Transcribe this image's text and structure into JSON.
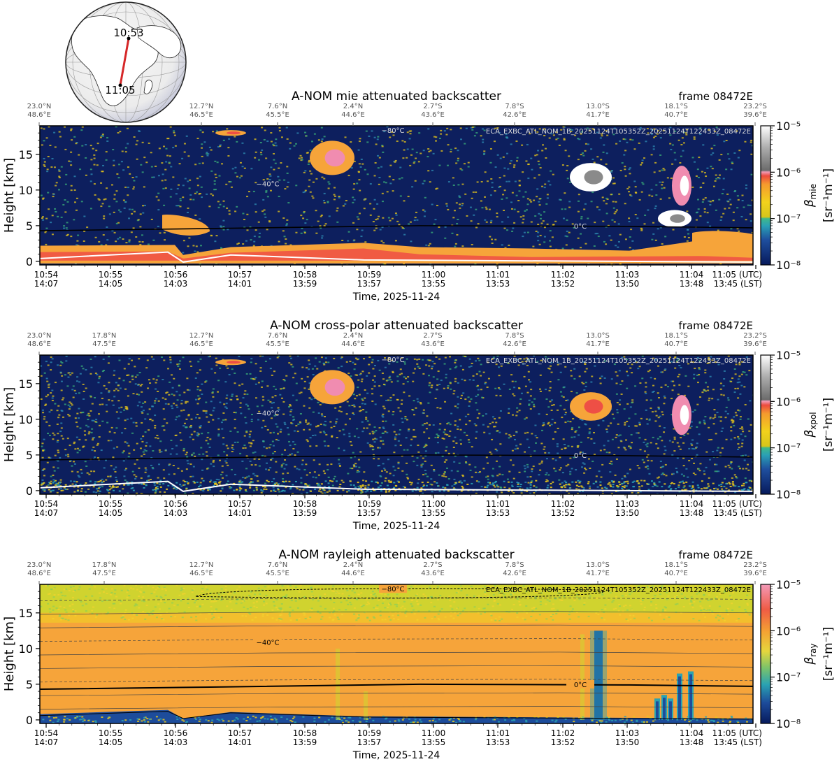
{
  "globe": {
    "start_label": "10:53",
    "end_label": "11:05",
    "track_color": "#d62728"
  },
  "common": {
    "frame_label": "frame 08472E",
    "time_axis_label": "Time, 2025-11-24",
    "height_label": "Height [km]",
    "utc_suffix": "(UTC)",
    "lst_suffix": "(LST)",
    "temp_labels": [
      "−80°C",
      "−40°C",
      "0°C"
    ],
    "product_label": "ECA_EXBC_ATL_NOM_1B_20251124T105352Z_20251124T122433Z_08472E",
    "colors": {
      "navy": "#0d1f5e",
      "sky_yellow": "#e9c81a",
      "orange": "#f6a43a",
      "red": "#ee4f45",
      "pink": "#f08cb0",
      "gray": "#8a8a8a",
      "white": "#ffffff"
    }
  },
  "chart_data": [
    {
      "type": "heatmap",
      "title": "A-NOM mie attenuated backscatter",
      "colorbar_label": "βmie [sr⁻¹m⁻¹]",
      "colorbar_symbol": "β",
      "colorbar_sub": "mie",
      "colorbar_unit": "[sr⁻¹m⁻¹]",
      "colorbar_ticks": [
        "10⁻⁵",
        "10⁻⁶",
        "10⁻⁷",
        "10⁻⁸"
      ],
      "colorbar_range": [
        1e-08,
        1e-05
      ],
      "colorbar_scale": "log",
      "ylabel": "Height [km]",
      "ylim": [
        -0.5,
        19
      ],
      "yticks": [
        0,
        5,
        10,
        15
      ],
      "xlabel": "Time, 2025-11-24",
      "x_utc": [
        "10:54",
        "10:55",
        "10:56",
        "10:57",
        "10:58",
        "10:59",
        "11:00",
        "11:01",
        "11:02",
        "11:03",
        "11:04",
        "11:05"
      ],
      "x_lst": [
        "14:07",
        "14:05",
        "14:03",
        "14:01",
        "13:59",
        "13:57",
        "13:55",
        "13:53",
        "13:52",
        "13:50",
        "13:48",
        "13:45"
      ],
      "top_lat": [
        "23.0°N",
        "",
        "12.7°N",
        "7.6°N",
        "2.4°N",
        "2.7°S",
        "7.8°S",
        "13.0°S",
        "18.1°S",
        "23.2°S"
      ],
      "top_lon": [
        "48.6°E",
        "",
        "46.5°E",
        "45.5°E",
        "44.6°E",
        "43.6°E",
        "42.6°E",
        "41.7°E",
        "40.7°E",
        "39.6°E"
      ],
      "isotherm_labels": [
        "−80°C",
        "−40°C",
        "0°C"
      ]
    },
    {
      "type": "heatmap",
      "title": "A-NOM cross-polar attenuated backscatter",
      "colorbar_label": "βxpol [sr⁻¹m⁻¹]",
      "colorbar_symbol": "β",
      "colorbar_sub": "xpol",
      "colorbar_unit": "[sr⁻¹m⁻¹]",
      "colorbar_ticks": [
        "10⁻⁵",
        "10⁻⁶",
        "10⁻⁷",
        "10⁻⁸"
      ],
      "colorbar_range": [
        1e-08,
        1e-05
      ],
      "colorbar_scale": "log",
      "ylabel": "Height [km]",
      "ylim": [
        -0.5,
        19
      ],
      "yticks": [
        0,
        5,
        10,
        15
      ],
      "xlabel": "Time, 2025-11-24",
      "x_utc": [
        "10:54",
        "10:55",
        "10:56",
        "10:57",
        "10:58",
        "10:59",
        "11:00",
        "11:01",
        "11:02",
        "11:03",
        "11:04",
        "11:05"
      ],
      "x_lst": [
        "14:07",
        "14:05",
        "14:03",
        "14:01",
        "13:59",
        "13:57",
        "13:55",
        "13:53",
        "13:52",
        "13:50",
        "13:48",
        "13:45"
      ],
      "top_lat": [
        "23.0°N",
        "17.8°N",
        "12.7°N",
        "7.6°N",
        "2.4°N",
        "2.7°S",
        "7.8°S",
        "13.0°S",
        "18.1°S",
        "23.2°S"
      ],
      "top_lon": [
        "48.6°E",
        "47.5°E",
        "46.5°E",
        "45.5°E",
        "44.6°E",
        "43.6°E",
        "42.6°E",
        "41.7°E",
        "40.7°E",
        "39.6°E"
      ],
      "isotherm_labels": [
        "−80°C",
        "−40°C",
        "0°C"
      ]
    },
    {
      "type": "heatmap",
      "title": "A-NOM rayleigh attenuated backscatter",
      "colorbar_label": "βray [sr⁻¹m⁻¹]",
      "colorbar_symbol": "β",
      "colorbar_sub": "ray",
      "colorbar_unit": "[sr⁻¹m⁻¹]",
      "colorbar_ticks": [
        "10⁻⁵",
        "10⁻⁶",
        "10⁻⁷",
        "10⁻⁸"
      ],
      "colorbar_range": [
        1e-08,
        1e-05
      ],
      "colorbar_scale": "log",
      "ylabel": "Height [km]",
      "ylim": [
        -0.5,
        19
      ],
      "yticks": [
        0,
        5,
        10,
        15
      ],
      "xlabel": "Time, 2025-11-24",
      "x_utc": [
        "10:54",
        "10:55",
        "10:56",
        "10:57",
        "10:58",
        "10:59",
        "11:00",
        "11:01",
        "11:02",
        "11:03",
        "11:04",
        "11:05"
      ],
      "x_lst": [
        "14:07",
        "14:05",
        "14:03",
        "14:01",
        "13:59",
        "13:57",
        "13:55",
        "13:53",
        "13:52",
        "13:50",
        "13:48",
        "13:45"
      ],
      "top_lat": [
        "23.0°N",
        "17.8°N",
        "12.7°N",
        "7.6°N",
        "2.4°N",
        "2.7°S",
        "7.8°S",
        "13.0°S",
        "18.1°S",
        "23.2°S"
      ],
      "top_lon": [
        "48.6°E",
        "47.5°E",
        "46.5°E",
        "45.5°E",
        "44.6°E",
        "43.6°E",
        "42.6°E",
        "41.7°E",
        "40.7°E",
        "39.6°E"
      ],
      "isotherm_labels": [
        "−80°C",
        "−40°C",
        "0°C"
      ]
    }
  ]
}
